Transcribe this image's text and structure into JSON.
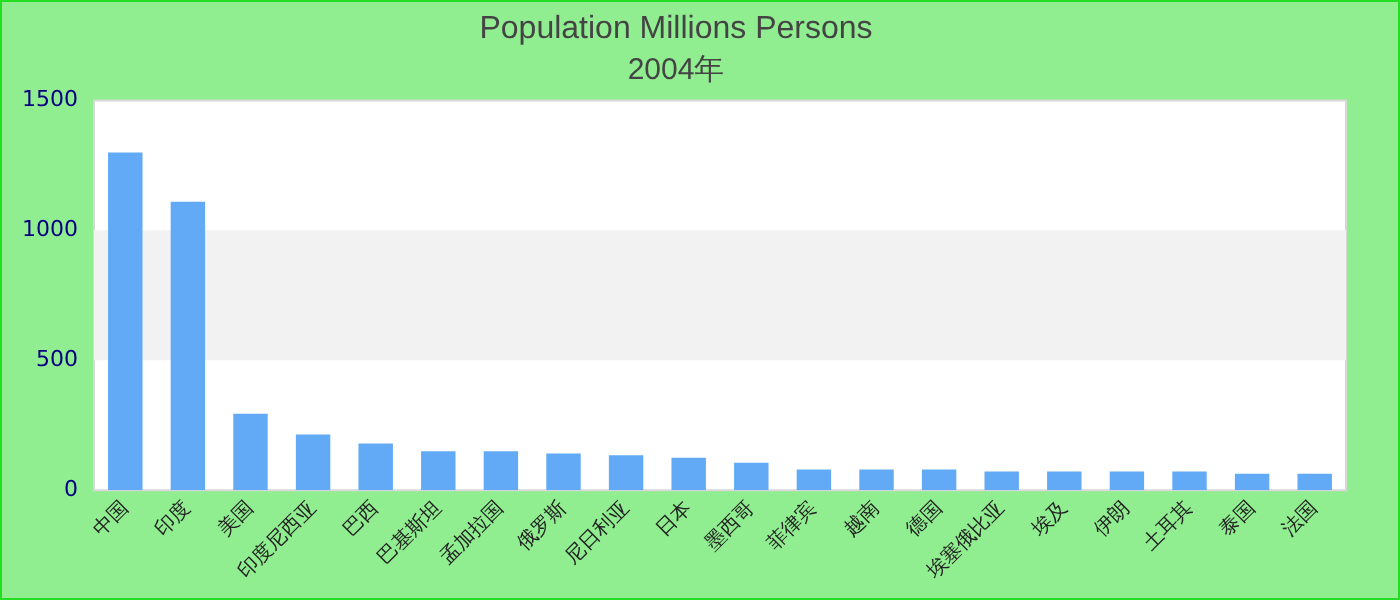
{
  "chart_data": {
    "type": "bar",
    "title": "Population Millions Persons",
    "subtitle": "2004年",
    "categories": [
      "中国",
      "印度",
      "美国",
      "印度尼西亚",
      "巴西",
      "巴基斯坦",
      "孟加拉国",
      "俄罗斯",
      "尼日利亚",
      "日本",
      "墨西哥",
      "菲律宾",
      "越南",
      "德国",
      "埃塞俄比亚",
      "埃及",
      "伊朗",
      "土耳其",
      "泰国",
      "法国"
    ],
    "values": [
      1300,
      1110,
      295,
      215,
      180,
      150,
      150,
      142,
      135,
      125,
      106,
      80,
      80,
      80,
      72,
      72,
      72,
      72,
      64,
      64
    ],
    "color": "#62aaf5",
    "ylim": [
      0,
      1500
    ],
    "yticks": [
      0,
      500,
      1000,
      1500
    ],
    "grid": false,
    "bands": [
      {
        "axis": "y",
        "from": 500,
        "to": 1000,
        "color": "#f2f2f2"
      }
    ]
  }
}
